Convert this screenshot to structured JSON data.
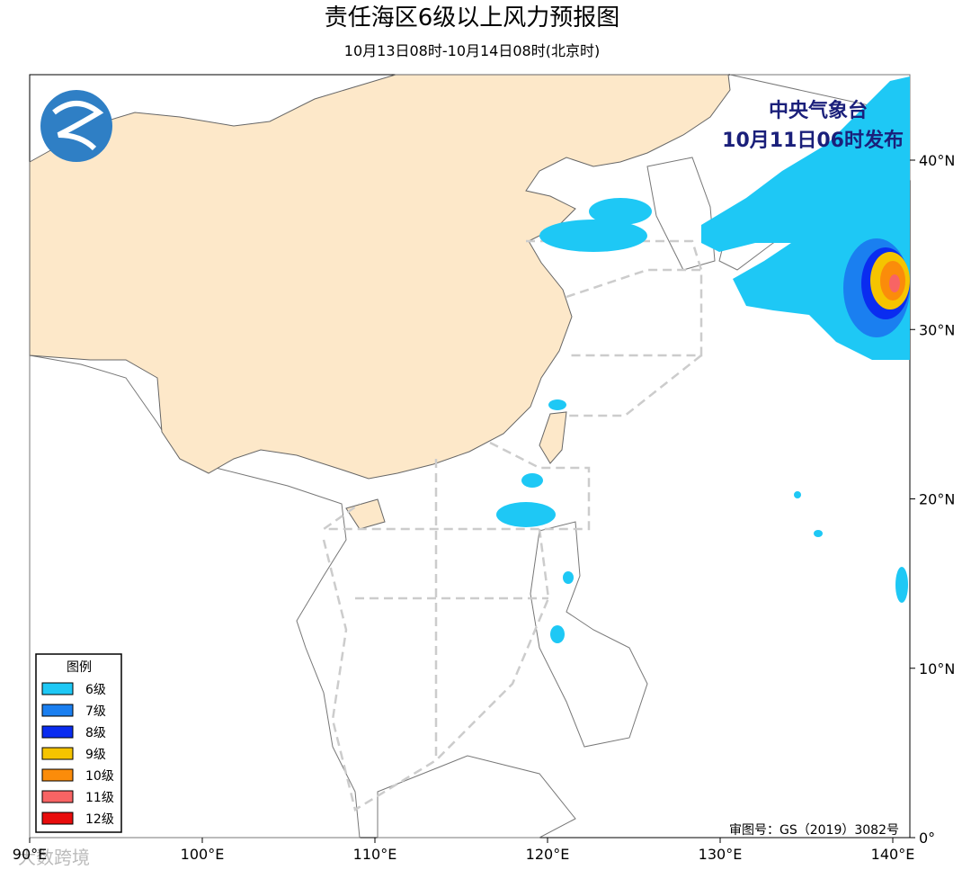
{
  "header": {
    "title": "责任海区6级以上风力预报图",
    "subtitle": "10月13日08时-10月14日08时(北京时)"
  },
  "issuer": {
    "name": "中央气象台",
    "time": "10月11日06时发布"
  },
  "axes": {
    "x_labels": [
      "90°E",
      "100°E",
      "110°E",
      "120°E",
      "130°E",
      "140°E"
    ],
    "y_labels": [
      "40°N",
      "30°N",
      "20°N",
      "10°N",
      "0°"
    ]
  },
  "legend": {
    "title": "图例",
    "items": [
      {
        "label": "6级",
        "color": "#1ec8f5"
      },
      {
        "label": "7级",
        "color": "#1a7ff0"
      },
      {
        "label": "8级",
        "color": "#0a2cf0"
      },
      {
        "label": "9级",
        "color": "#f5c400"
      },
      {
        "label": "10级",
        "color": "#fb8c0a"
      },
      {
        "label": "11级",
        "color": "#f86464"
      },
      {
        "label": "12级",
        "color": "#e80c0c"
      }
    ]
  },
  "map_code": "审图号：GS（2019）3082号",
  "watermark": "大数跨境"
}
